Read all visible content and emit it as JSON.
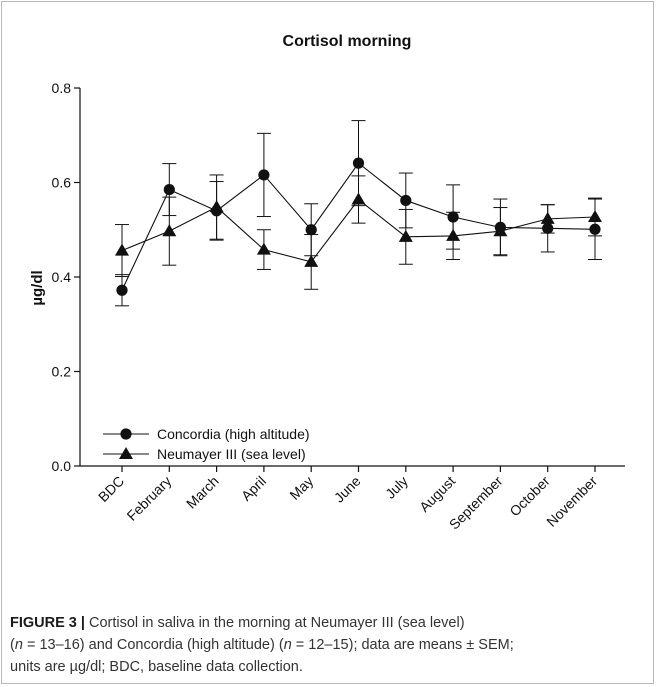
{
  "chart_data": {
    "type": "line",
    "title": "Cortisol morning",
    "xlabel": "",
    "ylabel": "µg/dl",
    "categories": [
      "BDC",
      "February",
      "March",
      "April",
      "May",
      "June",
      "July",
      "August",
      "September",
      "October",
      "November"
    ],
    "ylim": [
      0.0,
      0.8
    ],
    "yticks": [
      "0.0",
      "0.2",
      "0.4",
      "0.6",
      "0.8"
    ],
    "grid": false,
    "legend_position": "bottom-left",
    "series": [
      {
        "name": "Concordia (high altitude)",
        "marker": "circle",
        "values": [
          0.372,
          0.585,
          0.54,
          0.616,
          0.5,
          0.641,
          0.562,
          0.527,
          0.505,
          0.503,
          0.501
        ],
        "sem": [
          0.033,
          0.055,
          0.062,
          0.088,
          0.055,
          0.09,
          0.058,
          0.068,
          0.06,
          0.05,
          0.064
        ]
      },
      {
        "name": "Neumayer III (sea level)",
        "marker": "triangle",
        "values": [
          0.456,
          0.497,
          0.548,
          0.458,
          0.432,
          0.564,
          0.485,
          0.487,
          0.497,
          0.523,
          0.527
        ],
        "sem": [
          0.055,
          0.072,
          0.068,
          0.042,
          0.058,
          0.05,
          0.058,
          0.05,
          0.05,
          0.03,
          0.04
        ]
      }
    ],
    "color": "#111111"
  },
  "caption": {
    "label": "FIGURE 3 |",
    "line1": " Cortisol in saliva in the morning at Neumayer III (sea level)",
    "l2_open": "(",
    "l2_n1": "n",
    "l2_mid": " = 13–16) and Concordia (high altitude) (",
    "l2_n2": "n",
    "l2_end": " = 12–15); data are means ± SEM;",
    "line3": "units are µg/dl; BDC, baseline data collection."
  }
}
